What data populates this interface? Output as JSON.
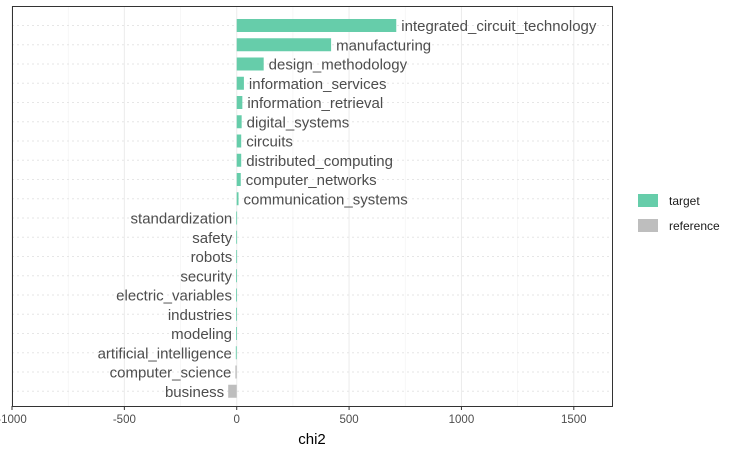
{
  "chart_data": {
    "type": "bar",
    "orientation": "horizontal",
    "categories": [
      "integrated_circuit_technology",
      "manufacturing",
      "design_methodology",
      "information_services",
      "information_retrieval",
      "digital_systems",
      "circuits",
      "distributed_computing",
      "computer_networks",
      "communication_systems",
      "standardization",
      "safety",
      "robots",
      "security",
      "electric_variables",
      "industries",
      "modeling",
      "artificial_intelligence",
      "computer_science",
      "business"
    ],
    "values": [
      710,
      420,
      120,
      32,
      25,
      22,
      20,
      20,
      18,
      8,
      -2,
      -2,
      -2,
      -3,
      -3,
      -3,
      -3,
      -4,
      -6,
      -38
    ],
    "groups": [
      "target",
      "target",
      "target",
      "target",
      "target",
      "target",
      "target",
      "target",
      "target",
      "target",
      "target",
      "target",
      "target",
      "target",
      "target",
      "target",
      "target",
      "target",
      "reference",
      "reference"
    ],
    "xlabel": "chi2",
    "xlim": [
      -1000,
      1670
    ],
    "xticks": [
      -1000,
      -500,
      0,
      500,
      1000,
      1500
    ],
    "xtick_labels": [
      "-1000",
      "-500",
      "0",
      "500",
      "1000",
      "1500"
    ],
    "grid": true,
    "legend": {
      "placement": "right",
      "entries": [
        {
          "label": "target",
          "color": "#66cdaa"
        },
        {
          "label": "reference",
          "color": "#bebebe"
        }
      ]
    }
  }
}
